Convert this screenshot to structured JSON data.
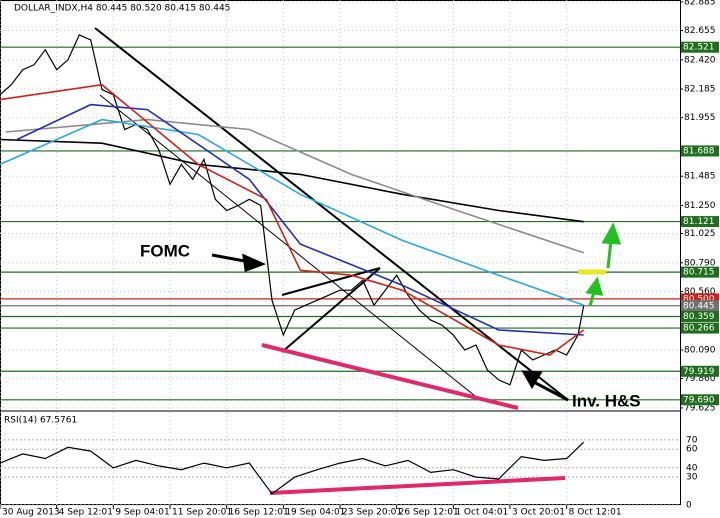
{
  "chart_data": {
    "type": "line",
    "title": "DOLLAR_INDX,H4  80.445 80.520 80.415 80.445",
    "xlim": [
      0,
      120
    ],
    "xticks": [
      {
        "value": 0,
        "label": "30 Aug 2013"
      },
      {
        "value": 10,
        "label": "4 Sep 12:01"
      },
      {
        "value": 20,
        "label": "9 Sep 04:01"
      },
      {
        "value": 30,
        "label": "11 Sep 20:01"
      },
      {
        "value": 40,
        "label": "16 Sep 12:01"
      },
      {
        "value": 50,
        "label": "19 Sep 04:01"
      },
      {
        "value": 60,
        "label": "23 Sep 20:01"
      },
      {
        "value": 70,
        "label": "26 Sep 12:01"
      },
      {
        "value": 80,
        "label": "1 Oct 04:01"
      },
      {
        "value": 90,
        "label": "3 Oct 20:01"
      },
      {
        "value": 100,
        "label": "8 Oct 12:01"
      }
    ],
    "ylim": [
      79.6,
      82.9
    ],
    "yticks": [
      82.885,
      82.655,
      {
        "value": 82.42,
        "label": "82.420"
      },
      82.185,
      81.955,
      81.485,
      {
        "value": 81.25,
        "label": "81.250"
      },
      81.025,
      {
        "value": 80.79,
        "label": "80.790"
      },
      {
        "value": 80.56,
        "label": "80.560"
      },
      {
        "value": 80.09,
        "label": "80.090"
      },
      {
        "value": 79.86,
        "label": "79.860"
      },
      79.625
    ],
    "grid": true,
    "series": [
      {
        "color": "#000000",
        "x": [
          0,
          2,
          4,
          6,
          8,
          10,
          12,
          14,
          16,
          18,
          20,
          22,
          24,
          26,
          28,
          30,
          32,
          34,
          36,
          38,
          40,
          42,
          44,
          46,
          48,
          50,
          52,
          54,
          56,
          58,
          60,
          62,
          64,
          66,
          68,
          70,
          72,
          74,
          76,
          78,
          80,
          82,
          84,
          86,
          88,
          90,
          92,
          94,
          96,
          98,
          100,
          102,
          103
        ],
        "values": [
          82.14,
          82.22,
          82.34,
          82.38,
          82.5,
          82.34,
          82.42,
          82.62,
          82.58,
          82.18,
          82.14,
          81.86,
          81.9,
          81.86,
          81.7,
          81.42,
          81.58,
          81.46,
          81.62,
          81.3,
          81.21,
          81.25,
          81.3,
          81.25,
          80.49,
          80.21,
          80.41,
          80.45,
          80.49,
          80.53,
          80.57,
          80.57,
          80.65,
          80.45,
          80.57,
          80.69,
          80.53,
          80.41,
          80.33,
          80.29,
          80.21,
          80.09,
          80.13,
          79.93,
          79.85,
          79.81,
          80.09,
          80.01,
          80.05,
          80.09,
          80.05,
          80.21,
          80.445
        ]
      },
      {
        "color": "#000000",
        "x": [
          0,
          18,
          35,
          53,
          71,
          88,
          103
        ],
        "values": [
          81.78,
          81.75,
          81.58,
          81.5,
          81.34,
          81.21,
          81.12
        ]
      },
      {
        "color": "#8c8c8c",
        "x": [
          1,
          26,
          44,
          62,
          80,
          103
        ],
        "values": [
          81.84,
          81.94,
          81.86,
          81.5,
          81.22,
          80.87
        ]
      },
      {
        "color": "#29a8e0",
        "x": [
          0,
          18,
          35,
          53,
          71,
          88,
          103
        ],
        "values": [
          81.58,
          81.94,
          81.82,
          81.34,
          80.97,
          80.69,
          80.45
        ]
      },
      {
        "color": "#1f2fb8",
        "x": [
          3,
          16,
          26,
          44,
          53,
          71,
          88,
          103
        ],
        "values": [
          81.78,
          82.06,
          82.02,
          81.46,
          80.94,
          80.61,
          80.25,
          80.21
        ]
      },
      {
        "color": "#d0201a",
        "x": [
          0,
          18,
          35,
          47,
          53,
          62,
          71,
          88,
          97,
          103
        ],
        "values": [
          82.1,
          82.22,
          81.58,
          81.3,
          80.73,
          80.69,
          80.57,
          80.13,
          80.05,
          80.25
        ]
      }
    ],
    "levels": [
      {
        "value": 82.521,
        "color": "#1e6e1e"
      },
      {
        "value": 81.688,
        "color": "#1e6e1e"
      },
      {
        "value": 81.121,
        "color": "#1e6e1e"
      },
      {
        "value": 80.715,
        "color": "#1e6e1e"
      },
      {
        "value": 80.5,
        "label": "80.500",
        "color": "#d0201a"
      },
      {
        "value": 80.445,
        "color": "#707070"
      },
      {
        "value": 80.359,
        "color": "#1e6e1e"
      },
      {
        "value": 80.266,
        "color": "#1e6e1e"
      },
      {
        "value": 79.919,
        "color": "#1e6e1e"
      },
      {
        "value": 79.69,
        "label": "79.690",
        "color": "#1e6e1e"
      }
    ],
    "annotations": [
      "FOMC",
      "Inv. H&S"
    ],
    "rsi": {
      "title": "RSI(14) 67.5761",
      "ylim": [
        0,
        100
      ],
      "yticks": [
        0,
        30,
        40,
        60,
        70
      ],
      "color": "#000000",
      "x": [
        0,
        4,
        8,
        12,
        16,
        20,
        24,
        28,
        32,
        36,
        40,
        44,
        48,
        52,
        56,
        60,
        64,
        68,
        72,
        76,
        80,
        84,
        88,
        92,
        96,
        100,
        103
      ],
      "values": [
        45,
        55,
        50,
        62,
        58,
        40,
        48,
        42,
        38,
        45,
        40,
        45,
        12,
        30,
        38,
        45,
        50,
        42,
        48,
        35,
        38,
        30,
        28,
        52,
        48,
        50,
        67.5761
      ]
    }
  }
}
